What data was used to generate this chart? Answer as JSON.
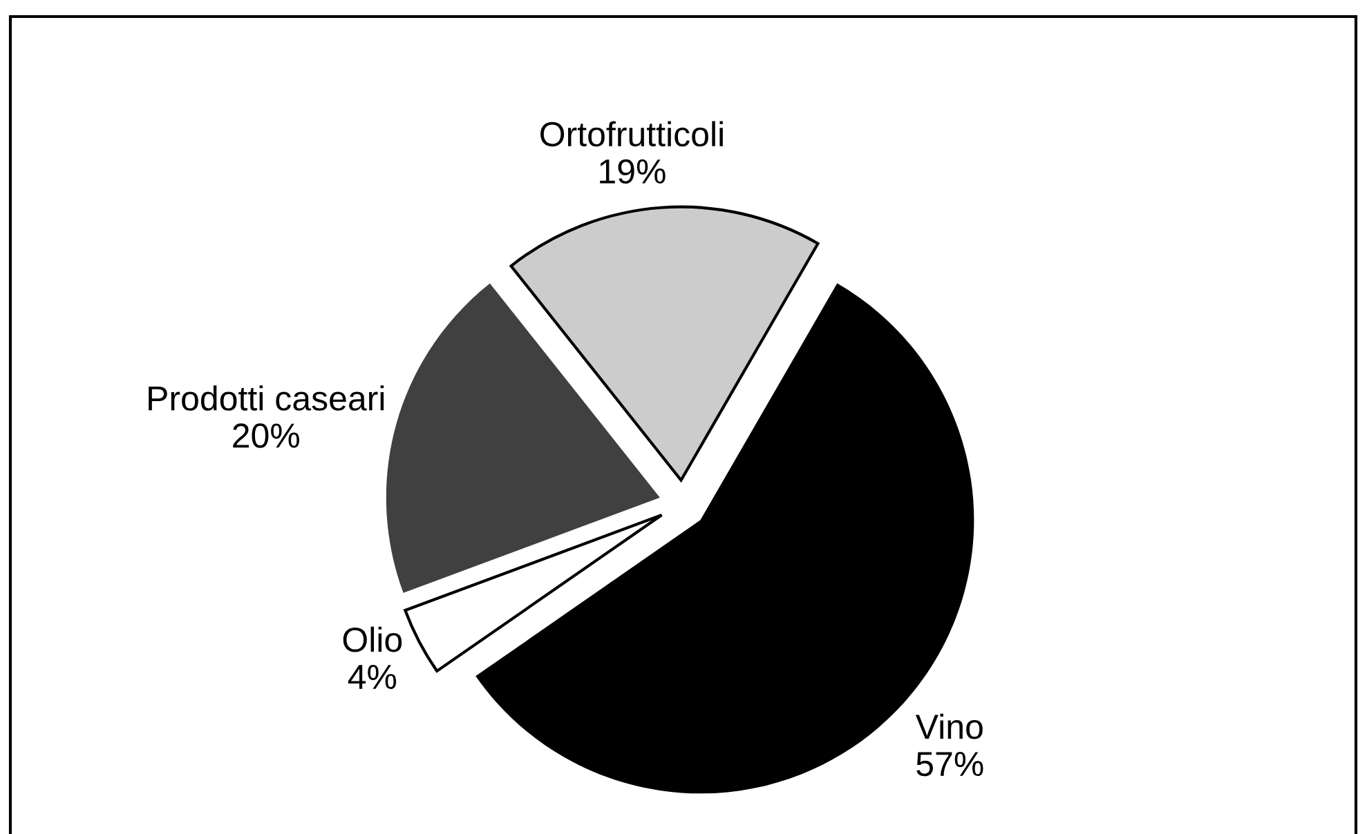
{
  "chart_data": {
    "type": "pie",
    "categories": [
      "Vino",
      "Olio",
      "Prodotti caseari",
      "Ortofrutticoli"
    ],
    "values": [
      57,
      4,
      20,
      19
    ],
    "value_labels": [
      "57%",
      "4%",
      "20%",
      "19%"
    ],
    "colors": [
      "#000000",
      "#ffffff",
      "#404040",
      "#cccccc"
    ]
  }
}
